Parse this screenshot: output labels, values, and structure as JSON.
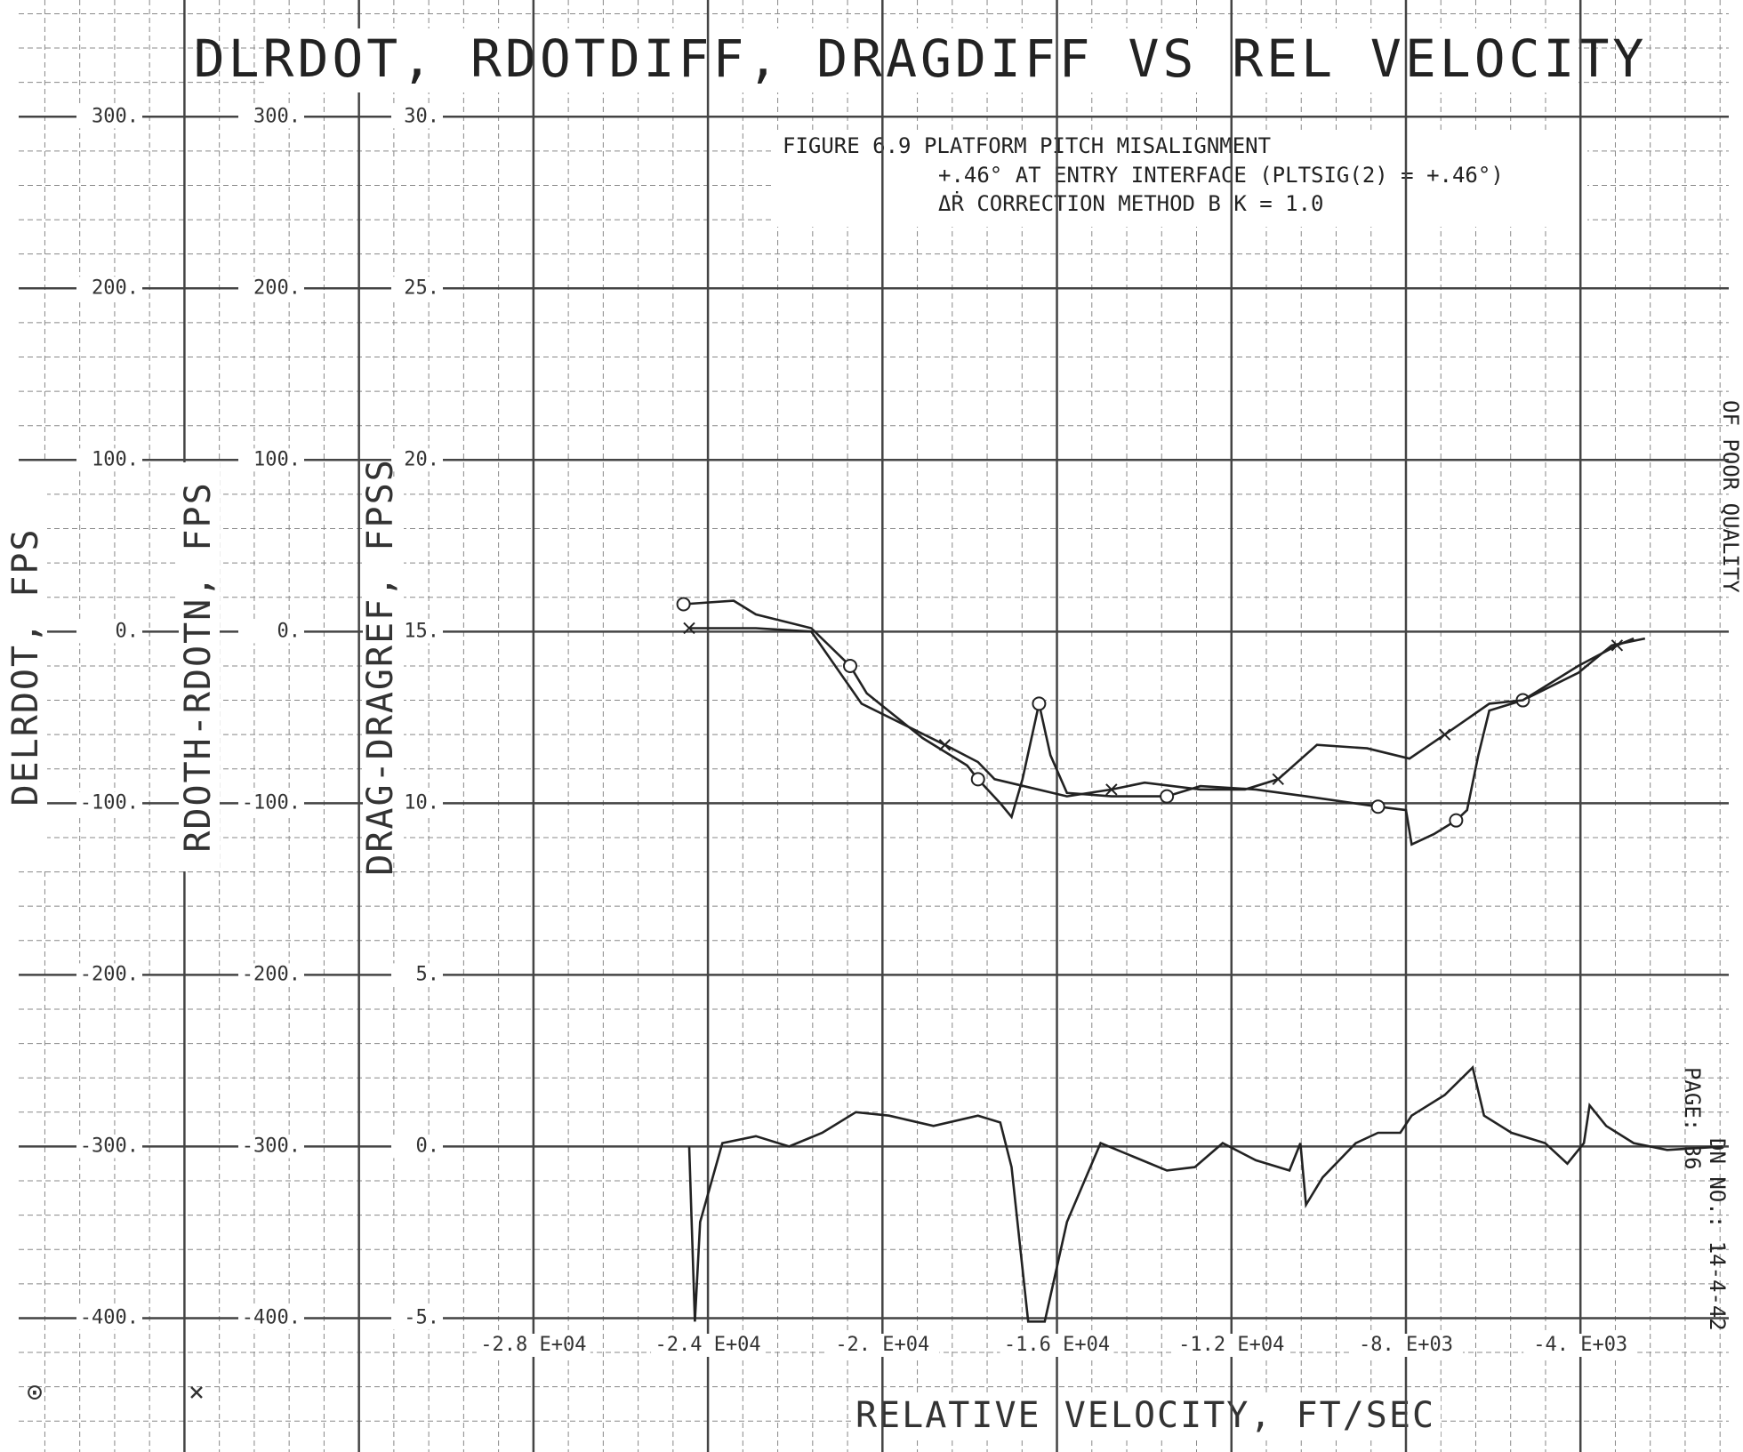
{
  "chart_data": {
    "type": "line",
    "title": "DLRDOT, RDOTDIFF, DRAGDIFF VS REL VELOCITY",
    "annotations": [
      "FIGURE 6.9  PLATFORM PITCH MISALIGNMENT",
      "+.46° AT ENTRY INTERFACE (PLTSIG(2) = +.46°)",
      "ΔṘ CORRECTION METHOD B    K = 1.0"
    ],
    "side_notes": [
      "DN NO.: 14-4-42",
      "PAGE: 36",
      "OF POOR QUALITY"
    ],
    "xlabel": "RELATIVE VELOCITY, FT/SEC",
    "xlim": [
      -39800,
      -600
    ],
    "xticks": [
      {
        "value": -28000,
        "label": "-2.8 E+04"
      },
      {
        "value": -24000,
        "label": "-2.4 E+04"
      },
      {
        "value": -20000,
        "label": "-2. E+04"
      },
      {
        "value": -16000,
        "label": "-1.6 E+04"
      },
      {
        "value": -12000,
        "label": "-1.2 E+04"
      },
      {
        "value": -8000,
        "label": "-8. E+03"
      },
      {
        "value": -4000,
        "label": "-4. E+03"
      }
    ],
    "ylabel": "DRAG-DRAGREF, FPSS",
    "ylim": [
      -8.9,
      33.4
    ],
    "yticks": [
      {
        "value": 30,
        "label": "30."
      },
      {
        "value": 25,
        "label": "25."
      },
      {
        "value": 20,
        "label": "20."
      },
      {
        "value": 15,
        "label": "15."
      },
      {
        "value": 10,
        "label": "10."
      },
      {
        "value": 5,
        "label": "5."
      },
      {
        "value": 0,
        "label": "0."
      },
      {
        "value": -5,
        "label": "-5."
      }
    ],
    "extra_axes": [
      {
        "label": "DELRDOT, FPS",
        "ylim": [
          -478,
          368
        ],
        "yticks": [
          {
            "value": 300,
            "label": "300."
          },
          {
            "value": 200,
            "label": "200."
          },
          {
            "value": 100,
            "label": "100."
          },
          {
            "value": 0,
            "label": "0."
          },
          {
            "value": -100,
            "label": "-100."
          },
          {
            "value": -200,
            "label": "-200."
          },
          {
            "value": -300,
            "label": "-300."
          },
          {
            "value": -400,
            "label": "-400."
          }
        ]
      },
      {
        "label": "RDOTH-RDOTN, FPS",
        "ylim": [
          -478,
          368
        ],
        "yticks": [
          {
            "value": 300,
            "label": "300."
          },
          {
            "value": 200,
            "label": "200."
          },
          {
            "value": 100,
            "label": "100."
          },
          {
            "value": 0,
            "label": "0."
          },
          {
            "value": -100,
            "label": "-100."
          },
          {
            "value": -200,
            "label": "-200."
          },
          {
            "value": -300,
            "label": "-300."
          },
          {
            "value": -400,
            "label": "-400."
          }
        ]
      }
    ],
    "grid": true,
    "series": [
      {
        "color": "#222222",
        "marker": "circle",
        "x": [
          -24560,
          -23410,
          -22900,
          -21630,
          -20740,
          -20360,
          -19080,
          -18060,
          -17810,
          -17300,
          -17040,
          -16790,
          -16410,
          -16150,
          -15770,
          -14750,
          -13480,
          -12710,
          -11440,
          -10290,
          -8640,
          -8000,
          -7870,
          -7360,
          -6850,
          -6600,
          -6340,
          -6090,
          -5320,
          -4050,
          -3280,
          -2520
        ],
        "values": [
          15.8,
          15.9,
          15.5,
          15.1,
          14.0,
          13.2,
          11.9,
          11.1,
          10.7,
          10.0,
          9.6,
          10.7,
          12.9,
          11.4,
          10.3,
          10.2,
          10.2,
          10.5,
          10.4,
          10.2,
          9.9,
          9.8,
          8.8,
          9.1,
          9.5,
          9.8,
          11.4,
          12.7,
          13.0,
          13.8,
          14.6,
          14.8
        ]
      },
      {
        "color": "#222222",
        "marker": "x",
        "x": [
          -24430,
          -22900,
          -21630,
          -20480,
          -18570,
          -17810,
          -17430,
          -15770,
          -14750,
          -13990,
          -12710,
          -11690,
          -10930,
          -10040,
          -8890,
          -7920,
          -7110,
          -6090,
          -5320,
          -4050,
          -3160,
          -2780
        ],
        "values": [
          15.1,
          15.1,
          15.0,
          12.9,
          11.7,
          11.2,
          10.7,
          10.2,
          10.4,
          10.6,
          10.4,
          10.4,
          10.7,
          11.7,
          11.6,
          11.3,
          12.0,
          12.9,
          13.0,
          14.0,
          14.6,
          14.8
        ]
      },
      {
        "color": "#222222",
        "marker": "none",
        "x": [
          -24430,
          -24300,
          -24180,
          -23670,
          -22900,
          -22140,
          -21380,
          -20610,
          -19850,
          -18830,
          -17810,
          -17300,
          -17040,
          -16660,
          -16280,
          -15770,
          -15000,
          -14240,
          -13480,
          -12840,
          -12200,
          -11440,
          -10670,
          -10420,
          -10290,
          -9910,
          -9150,
          -8640,
          -8130,
          -7870,
          -7110,
          -6470,
          -6210,
          -5580,
          -4810,
          -4300,
          -3920,
          -3790,
          -3410,
          -2780,
          -2010,
          -740
        ],
        "values": [
          0.0,
          -5.1,
          -2.2,
          0.1,
          0.3,
          0.0,
          0.4,
          1.0,
          0.9,
          0.6,
          0.9,
          0.7,
          -0.6,
          -5.1,
          -5.1,
          -2.2,
          0.1,
          -0.3,
          -0.7,
          -0.6,
          0.1,
          -0.4,
          -0.7,
          0.1,
          -1.7,
          -0.9,
          0.1,
          0.4,
          0.4,
          0.9,
          1.5,
          2.3,
          0.9,
          0.4,
          0.1,
          -0.5,
          0.1,
          1.2,
          0.6,
          0.1,
          -0.1,
          0.0
        ]
      }
    ]
  }
}
